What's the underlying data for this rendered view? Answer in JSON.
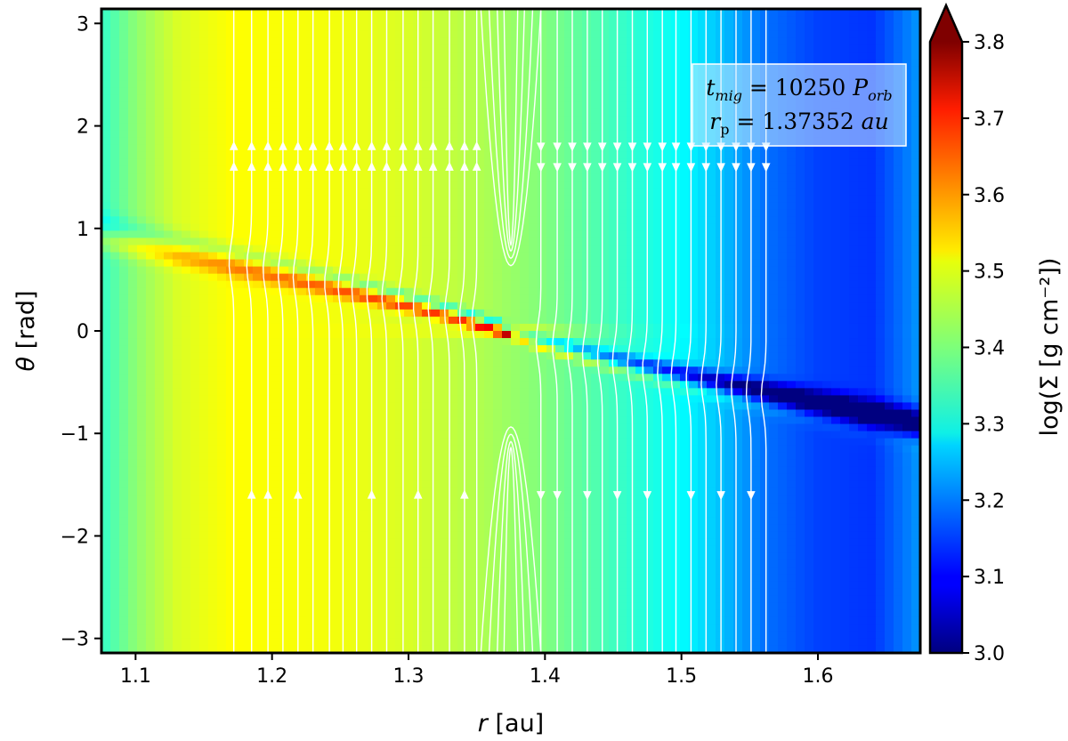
{
  "chart_data": {
    "type": "heatmap",
    "title": "",
    "xlabel": {
      "symbol": "r",
      "unit": "[au]"
    },
    "ylabel": {
      "symbol": "θ",
      "unit": "[rad]"
    },
    "xlim": [
      1.075,
      1.675
    ],
    "ylim": [
      -3.14159,
      3.14159
    ],
    "x_ticks": [
      1.1,
      1.2,
      1.3,
      1.4,
      1.5,
      1.6
    ],
    "x_tick_labels": [
      "1.1",
      "1.2",
      "1.3",
      "1.4",
      "1.5",
      "1.6"
    ],
    "y_ticks": [
      -3,
      -2,
      -1,
      0,
      1,
      2,
      3
    ],
    "y_tick_labels": [
      "−3",
      "−2",
      "−1",
      "0",
      "1",
      "2",
      "3"
    ],
    "colorbar": {
      "label": "log(Σ [g cm⁻²])",
      "range": [
        3.0,
        3.8
      ],
      "extend": "max",
      "ticks": [
        3.0,
        3.1,
        3.2,
        3.3,
        3.4,
        3.5,
        3.6,
        3.7,
        3.8
      ],
      "tick_labels": [
        "3.0",
        "3.1",
        "3.2",
        "3.3",
        "3.4",
        "3.5",
        "3.6",
        "3.7",
        "3.8"
      ],
      "colormap": "jet"
    },
    "annotation": {
      "line1": "t_mig = 10250 P_orb",
      "line2": "r_p = 1.37352 au"
    },
    "planet_radius_au": 1.37352,
    "background_profile": {
      "r": [
        1.075,
        1.1,
        1.13,
        1.17,
        1.25,
        1.3,
        1.35,
        1.4,
        1.45,
        1.5,
        1.53,
        1.56,
        1.6,
        1.64,
        1.675
      ],
      "log_sigma": [
        3.34,
        3.41,
        3.47,
        3.5,
        3.49,
        3.47,
        3.44,
        3.4,
        3.35,
        3.3,
        3.25,
        3.19,
        3.15,
        3.14,
        3.22
      ]
    },
    "wake": {
      "description": "spiral density wake through planet at theta=0",
      "inner_branch_peak_log_sigma": 3.7,
      "outer_branch_min_log_sigma": 3.02
    },
    "streamlines": {
      "color": "#ffffff",
      "left_region_direction": "up",
      "right_region_direction": "down",
      "horseshoe_center_r": 1.375
    }
  }
}
